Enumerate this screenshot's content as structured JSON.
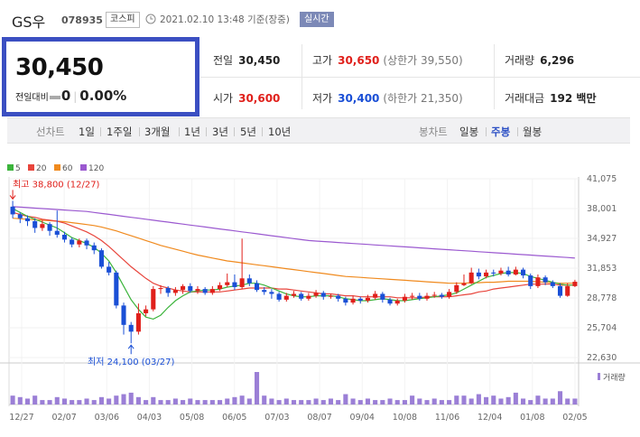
{
  "header": {
    "name": "GS우",
    "code": "078935",
    "market": "코스피",
    "timestamp": "2021.02.10 13:48 기준(장중)",
    "realtime_label": "실시간"
  },
  "price": {
    "current": "30,450",
    "change_label": "전일대비",
    "change_value": "0",
    "change_rate": "0.00%"
  },
  "stats": {
    "prev_close_label": "전일",
    "prev_close": "30,450",
    "high_label": "고가",
    "high": "30,650",
    "upper_limit": "(상한가 39,550)",
    "volume_label": "거래량",
    "volume": "6,296",
    "open_label": "시가",
    "open": "30,600",
    "low_label": "저가",
    "low": "30,400",
    "lower_limit": "(하한가 21,350)",
    "amount_label": "거래대금",
    "amount": "192 백만"
  },
  "tabs": {
    "line_label": "선차트",
    "line_periods": [
      "1일",
      "1주일",
      "3개월",
      "1년",
      "3년",
      "5년",
      "10년"
    ],
    "candle_label": "봉차트",
    "candle_periods": [
      "일봉",
      "주봉",
      "월봉"
    ],
    "active_candle": "주봉"
  },
  "colors": {
    "up": "#e0201b",
    "down": "#1a4fd6",
    "ma5": "#3cb43c",
    "ma20": "#e8453c",
    "ma60": "#f08a1e",
    "ma120": "#9b59d0",
    "volume": "#9b7fd6",
    "accent_border": "#3b4fc2"
  },
  "chart_data": {
    "type": "candlestick",
    "legend": [
      {
        "name": "5",
        "color": "#3cb43c"
      },
      {
        "name": "20",
        "color": "#e8453c"
      },
      {
        "name": "60",
        "color": "#f08a1e"
      },
      {
        "name": "120",
        "color": "#9b59d0"
      }
    ],
    "y_ticks": [
      "41,075",
      "38,001",
      "34,927",
      "31,853",
      "28,778",
      "25,704",
      "22,630"
    ],
    "ylim": [
      22630,
      41075
    ],
    "x_ticks": [
      "12/27",
      "02/07",
      "03/06",
      "04/03",
      "05/08",
      "06/05",
      "07/03",
      "08/07",
      "09/04",
      "10/08",
      "11/06",
      "12/04",
      "01/08",
      "02/05"
    ],
    "high_annotation": "최고 38,800 (12/27)",
    "low_annotation": "최저 24,100 (03/27)",
    "volume_legend": "거래량",
    "candles": [
      {
        "o": 38200,
        "c": 37400,
        "h": 38800,
        "l": 37000
      },
      {
        "o": 37400,
        "c": 37000,
        "h": 37600,
        "l": 36500
      },
      {
        "o": 37000,
        "c": 36700,
        "h": 37300,
        "l": 36200
      },
      {
        "o": 36700,
        "c": 36000,
        "h": 37000,
        "l": 35500
      },
      {
        "o": 36000,
        "c": 36400,
        "h": 36800,
        "l": 35700
      },
      {
        "o": 36400,
        "c": 35700,
        "h": 36600,
        "l": 35200
      },
      {
        "o": 35700,
        "c": 35300,
        "h": 37800,
        "l": 35000
      },
      {
        "o": 35300,
        "c": 34800,
        "h": 35600,
        "l": 34500
      },
      {
        "o": 34800,
        "c": 34300,
        "h": 35000,
        "l": 34000
      },
      {
        "o": 34300,
        "c": 34700,
        "h": 34900,
        "l": 34000
      },
      {
        "o": 34700,
        "c": 34200,
        "h": 34900,
        "l": 33800
      },
      {
        "o": 34200,
        "c": 33700,
        "h": 34500,
        "l": 33300
      },
      {
        "o": 33700,
        "c": 32000,
        "h": 33900,
        "l": 31800
      },
      {
        "o": 32000,
        "c": 31400,
        "h": 32500,
        "l": 31100
      },
      {
        "o": 31400,
        "c": 28000,
        "h": 31600,
        "l": 27700
      },
      {
        "o": 28000,
        "c": 26000,
        "h": 28300,
        "l": 25000
      },
      {
        "o": 26000,
        "c": 25300,
        "h": 26300,
        "l": 24100
      },
      {
        "o": 25300,
        "c": 27200,
        "h": 28200,
        "l": 25000
      },
      {
        "o": 27200,
        "c": 27600,
        "h": 28000,
        "l": 26900
      },
      {
        "o": 27600,
        "c": 29700,
        "h": 30000,
        "l": 27400
      },
      {
        "o": 29700,
        "c": 29800,
        "h": 30100,
        "l": 29200
      },
      {
        "o": 29800,
        "c": 29300,
        "h": 30000,
        "l": 28900
      },
      {
        "o": 29300,
        "c": 29600,
        "h": 29900,
        "l": 29000
      },
      {
        "o": 29600,
        "c": 30000,
        "h": 30200,
        "l": 29200
      },
      {
        "o": 30000,
        "c": 29500,
        "h": 30300,
        "l": 29300
      },
      {
        "o": 29500,
        "c": 29700,
        "h": 30000,
        "l": 29200
      },
      {
        "o": 29700,
        "c": 29300,
        "h": 29900,
        "l": 29100
      },
      {
        "o": 29300,
        "c": 29700,
        "h": 30000,
        "l": 29100
      },
      {
        "o": 29700,
        "c": 30100,
        "h": 30400,
        "l": 29500
      },
      {
        "o": 30100,
        "c": 30400,
        "h": 31300,
        "l": 29900
      },
      {
        "o": 30400,
        "c": 29900,
        "h": 31200,
        "l": 29600
      },
      {
        "o": 29900,
        "c": 30800,
        "h": 34900,
        "l": 29700
      },
      {
        "o": 30800,
        "c": 30300,
        "h": 31200,
        "l": 30000
      },
      {
        "o": 30300,
        "c": 29600,
        "h": 30600,
        "l": 29400
      },
      {
        "o": 29600,
        "c": 29400,
        "h": 29900,
        "l": 29100
      },
      {
        "o": 29400,
        "c": 29200,
        "h": 29700,
        "l": 28700
      },
      {
        "o": 29200,
        "c": 28600,
        "h": 29400,
        "l": 28400
      },
      {
        "o": 28600,
        "c": 29000,
        "h": 29300,
        "l": 28400
      },
      {
        "o": 29000,
        "c": 29200,
        "h": 29500,
        "l": 28800
      },
      {
        "o": 29200,
        "c": 28700,
        "h": 29400,
        "l": 28500
      },
      {
        "o": 28700,
        "c": 29000,
        "h": 29300,
        "l": 28500
      },
      {
        "o": 29000,
        "c": 29300,
        "h": 29600,
        "l": 28800
      },
      {
        "o": 29300,
        "c": 28900,
        "h": 29500,
        "l": 28600
      },
      {
        "o": 28900,
        "c": 29000,
        "h": 29200,
        "l": 28700
      },
      {
        "o": 29000,
        "c": 28700,
        "h": 29200,
        "l": 28400
      },
      {
        "o": 28700,
        "c": 28300,
        "h": 28900,
        "l": 28000
      },
      {
        "o": 28300,
        "c": 28700,
        "h": 29000,
        "l": 28100
      },
      {
        "o": 28700,
        "c": 28500,
        "h": 28900,
        "l": 28200
      },
      {
        "o": 28500,
        "c": 28800,
        "h": 29100,
        "l": 28300
      },
      {
        "o": 28800,
        "c": 29200,
        "h": 29500,
        "l": 28600
      },
      {
        "o": 29200,
        "c": 28600,
        "h": 29400,
        "l": 28300
      },
      {
        "o": 28600,
        "c": 28200,
        "h": 28800,
        "l": 28000
      },
      {
        "o": 28200,
        "c": 28500,
        "h": 28700,
        "l": 28000
      },
      {
        "o": 28500,
        "c": 28900,
        "h": 29200,
        "l": 28300
      },
      {
        "o": 28900,
        "c": 29000,
        "h": 29300,
        "l": 28600
      },
      {
        "o": 29000,
        "c": 28700,
        "h": 29300,
        "l": 28500
      },
      {
        "o": 28700,
        "c": 29000,
        "h": 29300,
        "l": 28500
      },
      {
        "o": 29000,
        "c": 29100,
        "h": 29400,
        "l": 28800
      },
      {
        "o": 29100,
        "c": 28900,
        "h": 29300,
        "l": 28700
      },
      {
        "o": 28900,
        "c": 29400,
        "h": 29700,
        "l": 28700
      },
      {
        "o": 29400,
        "c": 30100,
        "h": 30400,
        "l": 29200
      },
      {
        "o": 30100,
        "c": 30300,
        "h": 31200,
        "l": 30000
      },
      {
        "o": 30300,
        "c": 31400,
        "h": 31900,
        "l": 30200
      },
      {
        "o": 31400,
        "c": 31000,
        "h": 31800,
        "l": 30700
      },
      {
        "o": 31000,
        "c": 31400,
        "h": 31700,
        "l": 30800
      },
      {
        "o": 31400,
        "c": 31300,
        "h": 31700,
        "l": 31000
      },
      {
        "o": 31300,
        "c": 31600,
        "h": 31900,
        "l": 31100
      },
      {
        "o": 31600,
        "c": 31200,
        "h": 32000,
        "l": 31000
      },
      {
        "o": 31200,
        "c": 31700,
        "h": 32000,
        "l": 31100
      },
      {
        "o": 31700,
        "c": 31100,
        "h": 31900,
        "l": 30800
      },
      {
        "o": 31100,
        "c": 30000,
        "h": 31300,
        "l": 29700
      },
      {
        "o": 30000,
        "c": 30900,
        "h": 31200,
        "l": 29800
      },
      {
        "o": 30900,
        "c": 30400,
        "h": 31100,
        "l": 30100
      },
      {
        "o": 30400,
        "c": 30000,
        "h": 30600,
        "l": 29800
      },
      {
        "o": 30000,
        "c": 29000,
        "h": 30300,
        "l": 28800
      },
      {
        "o": 29000,
        "c": 30000,
        "h": 30300,
        "l": 28900
      },
      {
        "o": 30000,
        "c": 30450,
        "h": 30650,
        "l": 29900
      }
    ],
    "ma5": [
      38000,
      37600,
      37200,
      36900,
      36600,
      36300,
      36000,
      35500,
      35000,
      34700,
      34400,
      34000,
      33400,
      32600,
      31400,
      30000,
      28600,
      27600,
      26800,
      26600,
      27000,
      27800,
      28500,
      29000,
      29400,
      29500,
      29600,
      29600,
      29700,
      29900,
      30000,
      30100,
      30300,
      30300,
      30100,
      29800,
      29500,
      29200,
      29000,
      28900,
      28900,
      29000,
      29000,
      29000,
      28900,
      28700,
      28600,
      28500,
      28500,
      28600,
      28700,
      28600,
      28500,
      28500,
      28600,
      28700,
      28800,
      28900,
      29000,
      29100,
      29300,
      29700,
      30100,
      30500,
      30900,
      31100,
      31300,
      31400,
      31400,
      31300,
      31000,
      30800,
      30600,
      30400,
      30200,
      30100,
      30100
    ],
    "ma20": [
      37600,
      37400,
      37200,
      37100,
      36900,
      36800,
      36700,
      36500,
      36200,
      35900,
      35600,
      35200,
      34700,
      34100,
      33400,
      32700,
      32000,
      31400,
      30800,
      30300,
      30000,
      29800,
      29600,
      29500,
      29400,
      29400,
      29400,
      29400,
      29400,
      29500,
      29600,
      29700,
      29800,
      29800,
      29800,
      29800,
      29700,
      29700,
      29600,
      29500,
      29400,
      29300,
      29200,
      29200,
      29100,
      29000,
      29000,
      28900,
      28900,
      28900,
      28900,
      28900,
      28800,
      28800,
      28800,
      28800,
      28900,
      28900,
      28900,
      28900,
      29000,
      29100,
      29200,
      29400,
      29500,
      29700,
      29800,
      29900,
      30000,
      30100,
      30200,
      30200,
      30200,
      30200,
      30100,
      30100,
      30100
    ],
    "ma60": [
      37000,
      36950,
      36900,
      36850,
      36800,
      36750,
      36700,
      36650,
      36550,
      36450,
      36350,
      36250,
      36100,
      35900,
      35700,
      35450,
      35200,
      34950,
      34700,
      34450,
      34200,
      34000,
      33800,
      33600,
      33400,
      33200,
      33050,
      32900,
      32750,
      32600,
      32500,
      32400,
      32300,
      32200,
      32100,
      32000,
      31900,
      31800,
      31700,
      31600,
      31500,
      31400,
      31300,
      31200,
      31100,
      31000,
      30950,
      30900,
      30850,
      30800,
      30750,
      30700,
      30650,
      30600,
      30550,
      30500,
      30450,
      30400,
      30350,
      30300,
      30300,
      30300,
      30350,
      30350,
      30400,
      30400,
      30450,
      30500,
      30500,
      30500,
      30500,
      30450,
      30400,
      30350,
      30300,
      30300,
      30300
    ],
    "ma120": [
      38200,
      38150,
      38100,
      38050,
      38000,
      37950,
      37900,
      37850,
      37800,
      37750,
      37700,
      37600,
      37500,
      37400,
      37300,
      37200,
      37100,
      37000,
      36900,
      36800,
      36700,
      36600,
      36500,
      36400,
      36300,
      36200,
      36100,
      36000,
      35900,
      35800,
      35700,
      35600,
      35500,
      35400,
      35300,
      35200,
      35100,
      35000,
      34900,
      34800,
      34700,
      34650,
      34600,
      34550,
      34500,
      34450,
      34400,
      34350,
      34300,
      34250,
      34200,
      34150,
      34100,
      34050,
      34000,
      33950,
      33900,
      33850,
      33800,
      33750,
      33700,
      33650,
      33600,
      33550,
      33500,
      33450,
      33400,
      33350,
      33300,
      33250,
      33200,
      33150,
      33100,
      33050,
      33000,
      32950,
      32900
    ],
    "volume": [
      6,
      5,
      4,
      6,
      3,
      3,
      5,
      4,
      3,
      3,
      4,
      3,
      5,
      4,
      6,
      7,
      8,
      5,
      3,
      5,
      3,
      3,
      4,
      3,
      4,
      3,
      3,
      3,
      3,
      4,
      5,
      6,
      4,
      22,
      6,
      4,
      3,
      4,
      3,
      3,
      3,
      4,
      3,
      4,
      3,
      7,
      4,
      3,
      4,
      3,
      3,
      4,
      3,
      3,
      6,
      4,
      3,
      4,
      3,
      3,
      6,
      6,
      4,
      7,
      5,
      6,
      4,
      5,
      8,
      4,
      3,
      6,
      4,
      4,
      9,
      4,
      4
    ]
  }
}
